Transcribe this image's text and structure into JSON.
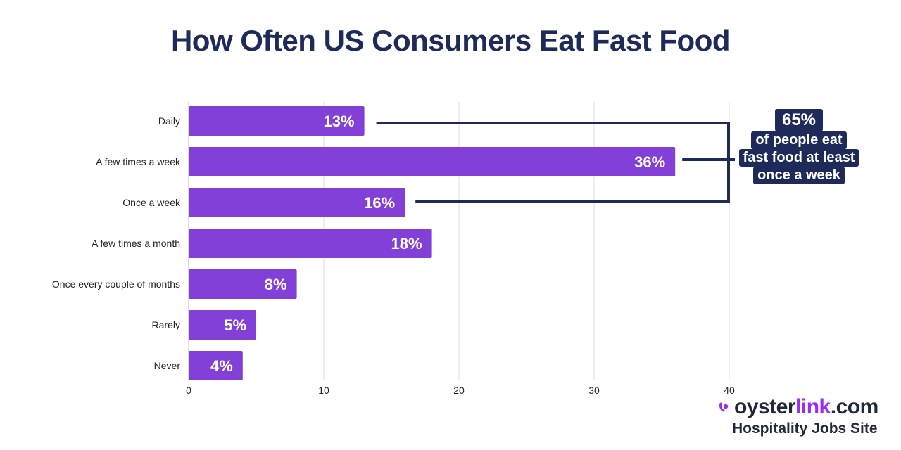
{
  "chart_data": {
    "type": "bar",
    "orientation": "horizontal",
    "title": "How Often US Consumers Eat Fast Food",
    "categories": [
      "Daily",
      "A few times a week",
      "Once a week",
      "A few times a month",
      "Once every couple of months",
      "Rarely",
      "Never"
    ],
    "values": [
      13,
      36,
      16,
      18,
      8,
      5,
      4
    ],
    "data_labels": [
      "13%",
      "36%",
      "16%",
      "18%",
      "8%",
      "5%",
      "4%"
    ],
    "xlim": [
      0,
      40
    ],
    "xticks": [
      "0",
      "10",
      "20",
      "30",
      "40"
    ],
    "grid": true,
    "bar_color": "#8340d9",
    "annotation": {
      "value": "65%",
      "lines": [
        "of people eat",
        "fast food at least",
        "once a week"
      ],
      "color": "#1e2a5a"
    }
  },
  "logo": {
    "brand_prefix": "oyster",
    "brand_highlight": "link",
    "brand_suffix": ".com",
    "tagline": "Hospitality Jobs Site"
  }
}
